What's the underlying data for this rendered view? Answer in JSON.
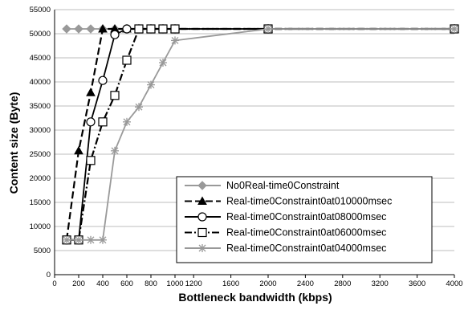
{
  "chart_data": {
    "type": "line",
    "xlabel": "Bottleneck bandwidth (kbps)",
    "ylabel": "Content size (Byte)",
    "xlim": [
      0,
      4000
    ],
    "ylim": [
      0,
      55000
    ],
    "x_ticks": [
      0,
      200,
      400,
      600,
      800,
      1000,
      1200,
      1600,
      2000,
      2400,
      2800,
      3200,
      3600,
      4000
    ],
    "y_ticks": [
      0,
      5000,
      10000,
      15000,
      20000,
      25000,
      30000,
      35000,
      40000,
      45000,
      50000,
      55000
    ],
    "grid": "horizontal",
    "legend_position": "bottom-right",
    "series": [
      {
        "name": "No0Real-time0Constraint",
        "color": "#999999",
        "marker": "diamond",
        "dash": "solid",
        "x": [
          100,
          200,
          300,
          400,
          500,
          600,
          700,
          800,
          900,
          1000,
          2000,
          4000
        ],
        "y": [
          51000,
          51000,
          51000,
          51000,
          51000,
          51000,
          51000,
          51000,
          51000,
          51000,
          51000,
          51000
        ]
      },
      {
        "name": "Real-time0Constraint0at010000msec",
        "color": "#000000",
        "marker": "triangle",
        "dash": "dashed",
        "x": [
          100,
          200,
          300,
          400,
          500,
          600,
          700,
          800,
          900,
          1000,
          2000,
          4000
        ],
        "y": [
          7200,
          25700,
          37800,
          51000,
          51000,
          51000,
          51000,
          51000,
          51000,
          51000,
          51000,
          51000
        ]
      },
      {
        "name": "Real-time0Constraint0at08000msec",
        "color": "#000000",
        "marker": "circle",
        "dash": "solid",
        "x": [
          100,
          200,
          300,
          400,
          500,
          600,
          700,
          800,
          900,
          1000,
          2000,
          4000
        ],
        "y": [
          7200,
          7200,
          31700,
          40300,
          49800,
          51000,
          51000,
          51000,
          51000,
          51000,
          51000,
          51000
        ]
      },
      {
        "name": "Real-time0Constraint0at06000msec",
        "color": "#000000",
        "marker": "square",
        "dash": "dashdot",
        "x": [
          100,
          200,
          300,
          400,
          500,
          600,
          700,
          800,
          900,
          1000,
          2000,
          4000
        ],
        "y": [
          7200,
          7200,
          23700,
          31700,
          37200,
          44500,
          51000,
          51000,
          51000,
          51000,
          51000,
          51000
        ]
      },
      {
        "name": "Real-time0Constraint0at04000msec",
        "color": "#999999",
        "marker": "star",
        "dash": "solid",
        "x": [
          100,
          200,
          300,
          400,
          500,
          600,
          700,
          800,
          900,
          1000,
          2000,
          4000
        ],
        "y": [
          7200,
          7200,
          7200,
          7200,
          25700,
          31700,
          34800,
          39400,
          44000,
          48600,
          51000,
          51000
        ]
      }
    ]
  }
}
